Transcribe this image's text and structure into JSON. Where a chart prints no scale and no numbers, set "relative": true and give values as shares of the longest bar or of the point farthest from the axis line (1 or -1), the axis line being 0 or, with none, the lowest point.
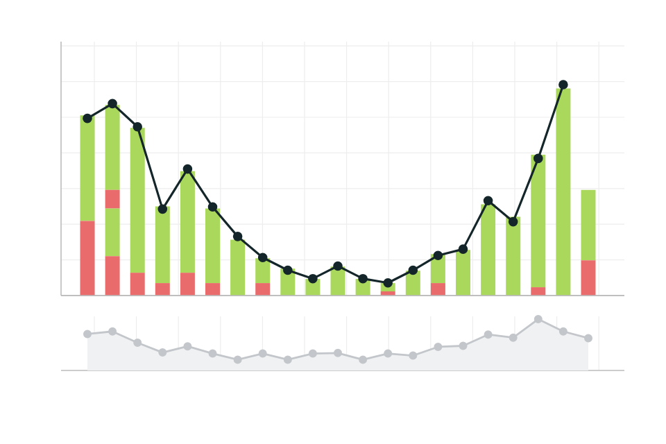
{
  "chart_data": [
    {
      "type": "bar",
      "stacked": true,
      "relative": true,
      "grid": true,
      "categories": [
        null,
        null,
        null,
        null,
        null,
        null,
        null,
        null,
        null,
        null,
        null,
        null,
        null,
        null,
        null,
        null,
        null,
        null,
        null,
        null,
        null
      ],
      "series": [
        {
          "color": "#e96b6b",
          "values": [
            0.36,
            0.19,
            0.11,
            0.06,
            0.11,
            0.06,
            0,
            0.06,
            0,
            0,
            0,
            0,
            0.02,
            0,
            0.06,
            0,
            0,
            0,
            0.04,
            0,
            0.17
          ]
        },
        {
          "color": "#a9d85c",
          "values": [
            0.51,
            0.23,
            0.7,
            0.37,
            0.49,
            0.36,
            0.27,
            0.12,
            0.13,
            0.08,
            0.14,
            0.08,
            0.04,
            0.12,
            0.14,
            0.22,
            0.44,
            0.38,
            0.64,
            1.0,
            0.34
          ]
        },
        {
          "color": "#e96b6b",
          "values": [
            0,
            0.09,
            0,
            0,
            0,
            0,
            0,
            0,
            0,
            0,
            0,
            0,
            0,
            0,
            0,
            0,
            0,
            0,
            0,
            0,
            0
          ]
        },
        {
          "color": "#a9d85c",
          "values": [
            0,
            0.41,
            0,
            0,
            0,
            0,
            0,
            0,
            0,
            0,
            0,
            0,
            0,
            0,
            0,
            0,
            0,
            0,
            0,
            0,
            0
          ]
        }
      ]
    },
    {
      "type": "line",
      "relative": true,
      "marker": "circle",
      "color": "#14262a",
      "categories": [
        null,
        null,
        null,
        null,
        null,
        null,
        null,
        null,
        null,
        null,
        null,
        null,
        null,
        null,
        null,
        null,
        null,
        null,
        null,
        null,
        null
      ],
      "values": [
        0.84,
        0.91,
        0.8,
        0.41,
        0.6,
        0.42,
        0.28,
        0.18,
        0.12,
        0.08,
        0.14,
        0.08,
        0.06,
        0.12,
        0.19,
        0.22,
        0.45,
        0.35,
        0.65,
        1.0,
        null
      ]
    },
    {
      "type": "area",
      "relative": true,
      "grid": true,
      "marker": "circle",
      "color": "#c3c6ca",
      "categories": [
        null,
        null,
        null,
        null,
        null,
        null,
        null,
        null,
        null,
        null,
        null,
        null,
        null,
        null,
        null,
        null,
        null,
        null,
        null,
        null,
        null
      ],
      "values": [
        0.71,
        0.76,
        0.54,
        0.35,
        0.47,
        0.33,
        0.21,
        0.33,
        0.21,
        0.33,
        0.34,
        0.21,
        0.33,
        0.29,
        0.46,
        0.48,
        0.7,
        0.64,
        1.0,
        0.76,
        0.63
      ]
    }
  ]
}
